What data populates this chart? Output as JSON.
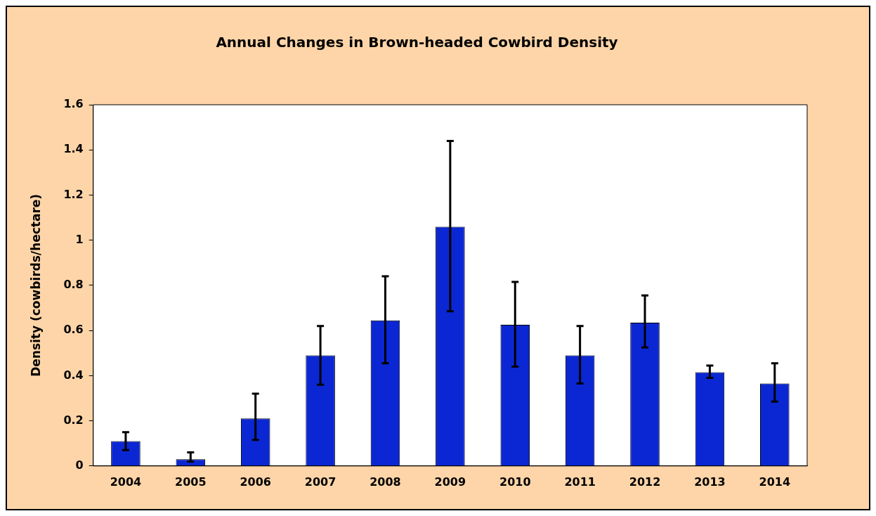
{
  "chart_data": {
    "type": "bar",
    "title": "Annual Changes in Brown-headed Cowbird Density",
    "ylabel": "Density (cowbirds/hectare)",
    "categories": [
      "2004",
      "2005",
      "2006",
      "2007",
      "2008",
      "2009",
      "2010",
      "2011",
      "2012",
      "2013",
      "2014"
    ],
    "values": [
      0.11,
      0.03,
      0.21,
      0.49,
      0.645,
      1.06,
      0.625,
      0.49,
      0.635,
      0.415,
      0.365
    ],
    "errors": [
      [
        0.07,
        0.15
      ],
      [
        0.02,
        0.06
      ],
      [
        0.115,
        0.32
      ],
      [
        0.36,
        0.62
      ],
      [
        0.455,
        0.84
      ],
      [
        0.685,
        1.44
      ],
      [
        0.44,
        0.815
      ],
      [
        0.365,
        0.62
      ],
      [
        0.525,
        0.755
      ],
      [
        0.39,
        0.445
      ],
      [
        0.285,
        0.455
      ]
    ],
    "color": "#0b27d4",
    "ylim": [
      0,
      1.6
    ],
    "yticks": [
      0,
      0.2,
      0.4,
      0.6,
      0.8,
      1,
      1.2,
      1.4,
      1.6
    ],
    "grid": false,
    "legend": false
  }
}
